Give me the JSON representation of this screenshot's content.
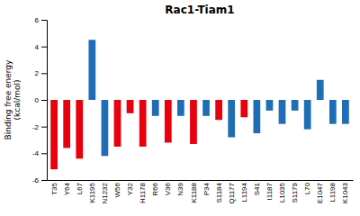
{
  "chart_data": {
    "type": "bar",
    "title": "Rac1-Tiam1",
    "ylabel": "Binding free energy\n(kcal/mol)",
    "categories": [
      "T35",
      "Y64",
      "L67",
      "K1195",
      "N1232",
      "W56",
      "Y32",
      "H1178",
      "R66",
      "V36",
      "N39",
      "K1188",
      "P34",
      "S1184",
      "Q1177",
      "L1194",
      "S41",
      "I1187",
      "L1035",
      "S1179",
      "L70",
      "E1047",
      "L1198",
      "K1043"
    ],
    "values": [
      -5.2,
      -3.6,
      -4.4,
      4.5,
      -4.2,
      -3.5,
      -1.0,
      -3.5,
      -1.2,
      -3.2,
      -1.2,
      -3.3,
      -1.2,
      -1.5,
      -2.8,
      -1.3,
      -2.5,
      -0.8,
      -1.8,
      -0.8,
      -2.2,
      1.5,
      -1.8,
      -1.8
    ],
    "colors": [
      "#e8000d",
      "#e8000d",
      "#e8000d",
      "#1f6eb5",
      "#1f6eb5",
      "#e8000d",
      "#e8000d",
      "#e8000d",
      "#1f6eb5",
      "#e8000d",
      "#1f6eb5",
      "#e8000d",
      "#1f6eb5",
      "#e8000d",
      "#1f6eb5",
      "#e8000d",
      "#1f6eb5",
      "#1f6eb5",
      "#1f6eb5",
      "#1f6eb5",
      "#1f6eb5",
      "#1f6eb5",
      "#1f6eb5",
      "#1f6eb5"
    ],
    "ylim": [
      -6,
      6
    ],
    "yticks": [
      -6,
      -4,
      -2,
      0,
      2,
      4,
      6
    ],
    "grid": false
  }
}
